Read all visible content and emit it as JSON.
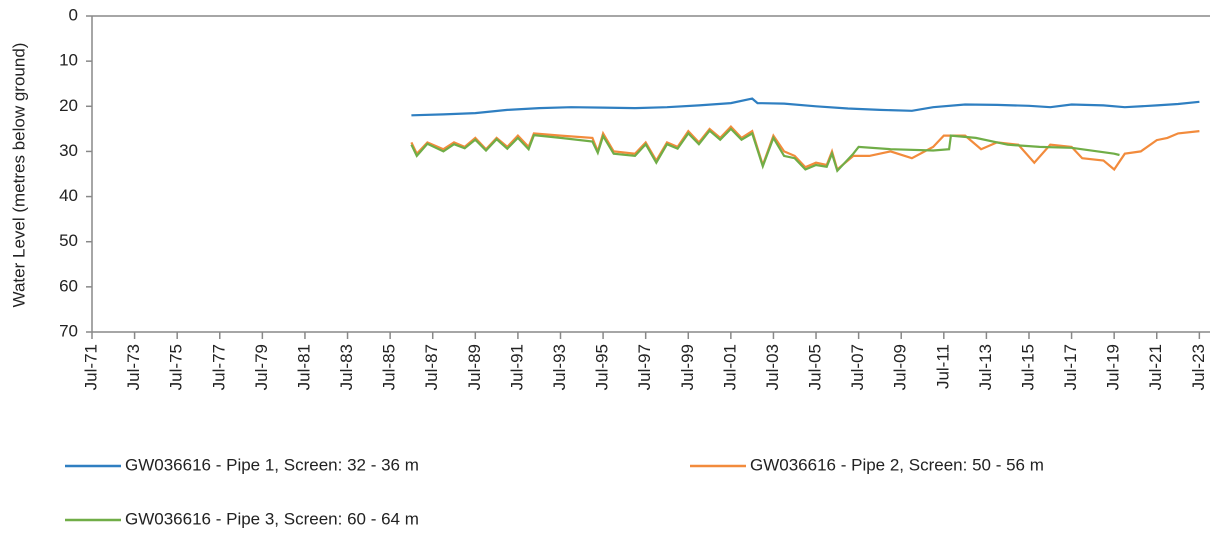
{
  "chart_data": {
    "type": "line",
    "y_label": "Water Level (metres below ground)",
    "y_inverted": true,
    "ylim": [
      0,
      70
    ],
    "yticks": [
      0,
      10,
      20,
      30,
      40,
      50,
      60,
      70
    ],
    "xlim": [
      "1971-07",
      "2024-01"
    ],
    "xticks": [
      {
        "value": "1971-07",
        "label": "Jul-71"
      },
      {
        "value": "1973-07",
        "label": "Jul-73"
      },
      {
        "value": "1975-07",
        "label": "Jul-75"
      },
      {
        "value": "1977-07",
        "label": "Jul-77"
      },
      {
        "value": "1979-07",
        "label": "Jul-79"
      },
      {
        "value": "1981-07",
        "label": "Jul-81"
      },
      {
        "value": "1983-07",
        "label": "Jul-83"
      },
      {
        "value": "1985-07",
        "label": "Jul-85"
      },
      {
        "value": "1987-07",
        "label": "Jul-87"
      },
      {
        "value": "1989-07",
        "label": "Jul-89"
      },
      {
        "value": "1991-07",
        "label": "Jul-91"
      },
      {
        "value": "1993-07",
        "label": "Jul-93"
      },
      {
        "value": "1995-07",
        "label": "Jul-95"
      },
      {
        "value": "1997-07",
        "label": "Jul-97"
      },
      {
        "value": "1999-07",
        "label": "Jul-99"
      },
      {
        "value": "2001-07",
        "label": "Jul-01"
      },
      {
        "value": "2003-07",
        "label": "Jul-03"
      },
      {
        "value": "2005-07",
        "label": "Jul-05"
      },
      {
        "value": "2007-07",
        "label": "Jul-07"
      },
      {
        "value": "2009-07",
        "label": "Jul-09"
      },
      {
        "value": "2011-07",
        "label": "Jul-11"
      },
      {
        "value": "2013-07",
        "label": "Jul-13"
      },
      {
        "value": "2015-07",
        "label": "Jul-15"
      },
      {
        "value": "2017-07",
        "label": "Jul-17"
      },
      {
        "value": "2019-07",
        "label": "Jul-19"
      },
      {
        "value": "2021-07",
        "label": "Jul-21"
      },
      {
        "value": "2023-07",
        "label": "Jul-23"
      }
    ],
    "series": [
      {
        "name": "GW036616 - Pipe 1, Screen: 32 - 36 m",
        "color": "#2f7fc1",
        "x": [
          "1986-07",
          "1988-01",
          "1989-07",
          "1991-01",
          "1992-07",
          "1994-01",
          "1995-07",
          "1997-01",
          "1998-07",
          "2000-01",
          "2001-07",
          "2002-07",
          "2002-10",
          "2004-01",
          "2005-07",
          "2007-01",
          "2008-07",
          "2010-01",
          "2011-01",
          "2012-07",
          "2014-01",
          "2015-07",
          "2016-07",
          "2017-07",
          "2019-01",
          "2020-01",
          "2021-07",
          "2022-07",
          "2023-07"
        ],
        "values": [
          22,
          21.8,
          21.5,
          20.8,
          20.4,
          20.2,
          20.3,
          20.4,
          20.2,
          19.8,
          19.3,
          18.3,
          19.3,
          19.4,
          20,
          20.5,
          20.8,
          21,
          20.2,
          19.6,
          19.7,
          19.9,
          20.2,
          19.6,
          19.8,
          20.2,
          19.8,
          19.5,
          19
        ]
      },
      {
        "name": "GW036616 - Pipe 2, Screen: 50 - 56 m",
        "color": "#f28b3c",
        "x": [
          "1986-07",
          "1986-10",
          "1987-04",
          "1988-01",
          "1988-07",
          "1989-01",
          "1989-07",
          "1990-01",
          "1990-07",
          "1991-01",
          "1991-07",
          "1992-01",
          "1992-04",
          "1993-07",
          "1995-01",
          "1995-04",
          "1995-07",
          "1996-01",
          "1997-01",
          "1997-07",
          "1998-01",
          "1998-07",
          "1999-01",
          "1999-07",
          "2000-01",
          "2000-07",
          "2001-01",
          "2001-07",
          "2002-01",
          "2002-07",
          "2003-01",
          "2003-07",
          "2004-01",
          "2004-07",
          "2005-01",
          "2005-07",
          "2006-01",
          "2006-04",
          "2006-07",
          "2007-04",
          "2008-01",
          "2009-01",
          "2010-01",
          "2011-01",
          "2011-07",
          "2012-07",
          "2013-04",
          "2014-01",
          "2015-01",
          "2015-10",
          "2016-07",
          "2017-07",
          "2018-01",
          "2019-01",
          "2019-07",
          "2020-01",
          "2020-10",
          "2021-07",
          "2022-01",
          "2022-07",
          "2023-07"
        ],
        "values": [
          28,
          30.5,
          28,
          29.5,
          28,
          29,
          27,
          29.5,
          27,
          29,
          26.5,
          29,
          26,
          26.5,
          27,
          30,
          26,
          30,
          30.5,
          28,
          32,
          28,
          29,
          25.5,
          28,
          25,
          27,
          24.5,
          27,
          25.5,
          33,
          26.5,
          30,
          31,
          33.5,
          32.5,
          33,
          30,
          34,
          31,
          31,
          30,
          31.5,
          29,
          26.5,
          26.5,
          29.5,
          28,
          28.5,
          32.5,
          28.5,
          29,
          31.5,
          32,
          34,
          30.5,
          30,
          27.5,
          27,
          26,
          25.5
        ]
      },
      {
        "name": "GW036616 - Pipe 3, Screen: 60 - 64 m",
        "color": "#70ad47",
        "x": [
          "1986-07",
          "1986-10",
          "1987-04",
          "1988-01",
          "1988-07",
          "1989-01",
          "1989-07",
          "1990-01",
          "1990-07",
          "1991-01",
          "1991-07",
          "1992-01",
          "1992-04",
          "1993-07",
          "1995-01",
          "1995-04",
          "1995-07",
          "1996-01",
          "1997-01",
          "1997-07",
          "1998-01",
          "1998-07",
          "1999-01",
          "1999-07",
          "2000-01",
          "2000-07",
          "2001-01",
          "2001-07",
          "2002-01",
          "2002-07",
          "2003-01",
          "2003-07",
          "2004-01",
          "2004-07",
          "2005-01",
          "2005-07",
          "2006-01",
          "2006-04",
          "2006-07",
          "2007-04",
          "2007-07",
          "2009-01",
          "2011-01",
          "2011-10",
          "2011-11",
          "2013-01",
          "2014-07",
          "2016-01",
          "2017-07",
          "2019-07",
          "2019-10"
        ],
        "values": [
          28.5,
          31,
          28.3,
          30,
          28.4,
          29.3,
          27.4,
          29.8,
          27.3,
          29.4,
          27,
          29.5,
          26.4,
          27,
          27.8,
          30.3,
          26.6,
          30.5,
          31,
          28.4,
          32.5,
          28.4,
          29.4,
          26,
          28.4,
          25.4,
          27.4,
          25,
          27.4,
          26,
          33.3,
          27,
          31,
          31.5,
          34,
          33,
          33.4,
          30.5,
          34.3,
          30.5,
          29,
          29.5,
          29.8,
          29.5,
          26.5,
          27,
          28.5,
          29,
          29.2,
          30.5,
          30.8
        ]
      }
    ]
  }
}
